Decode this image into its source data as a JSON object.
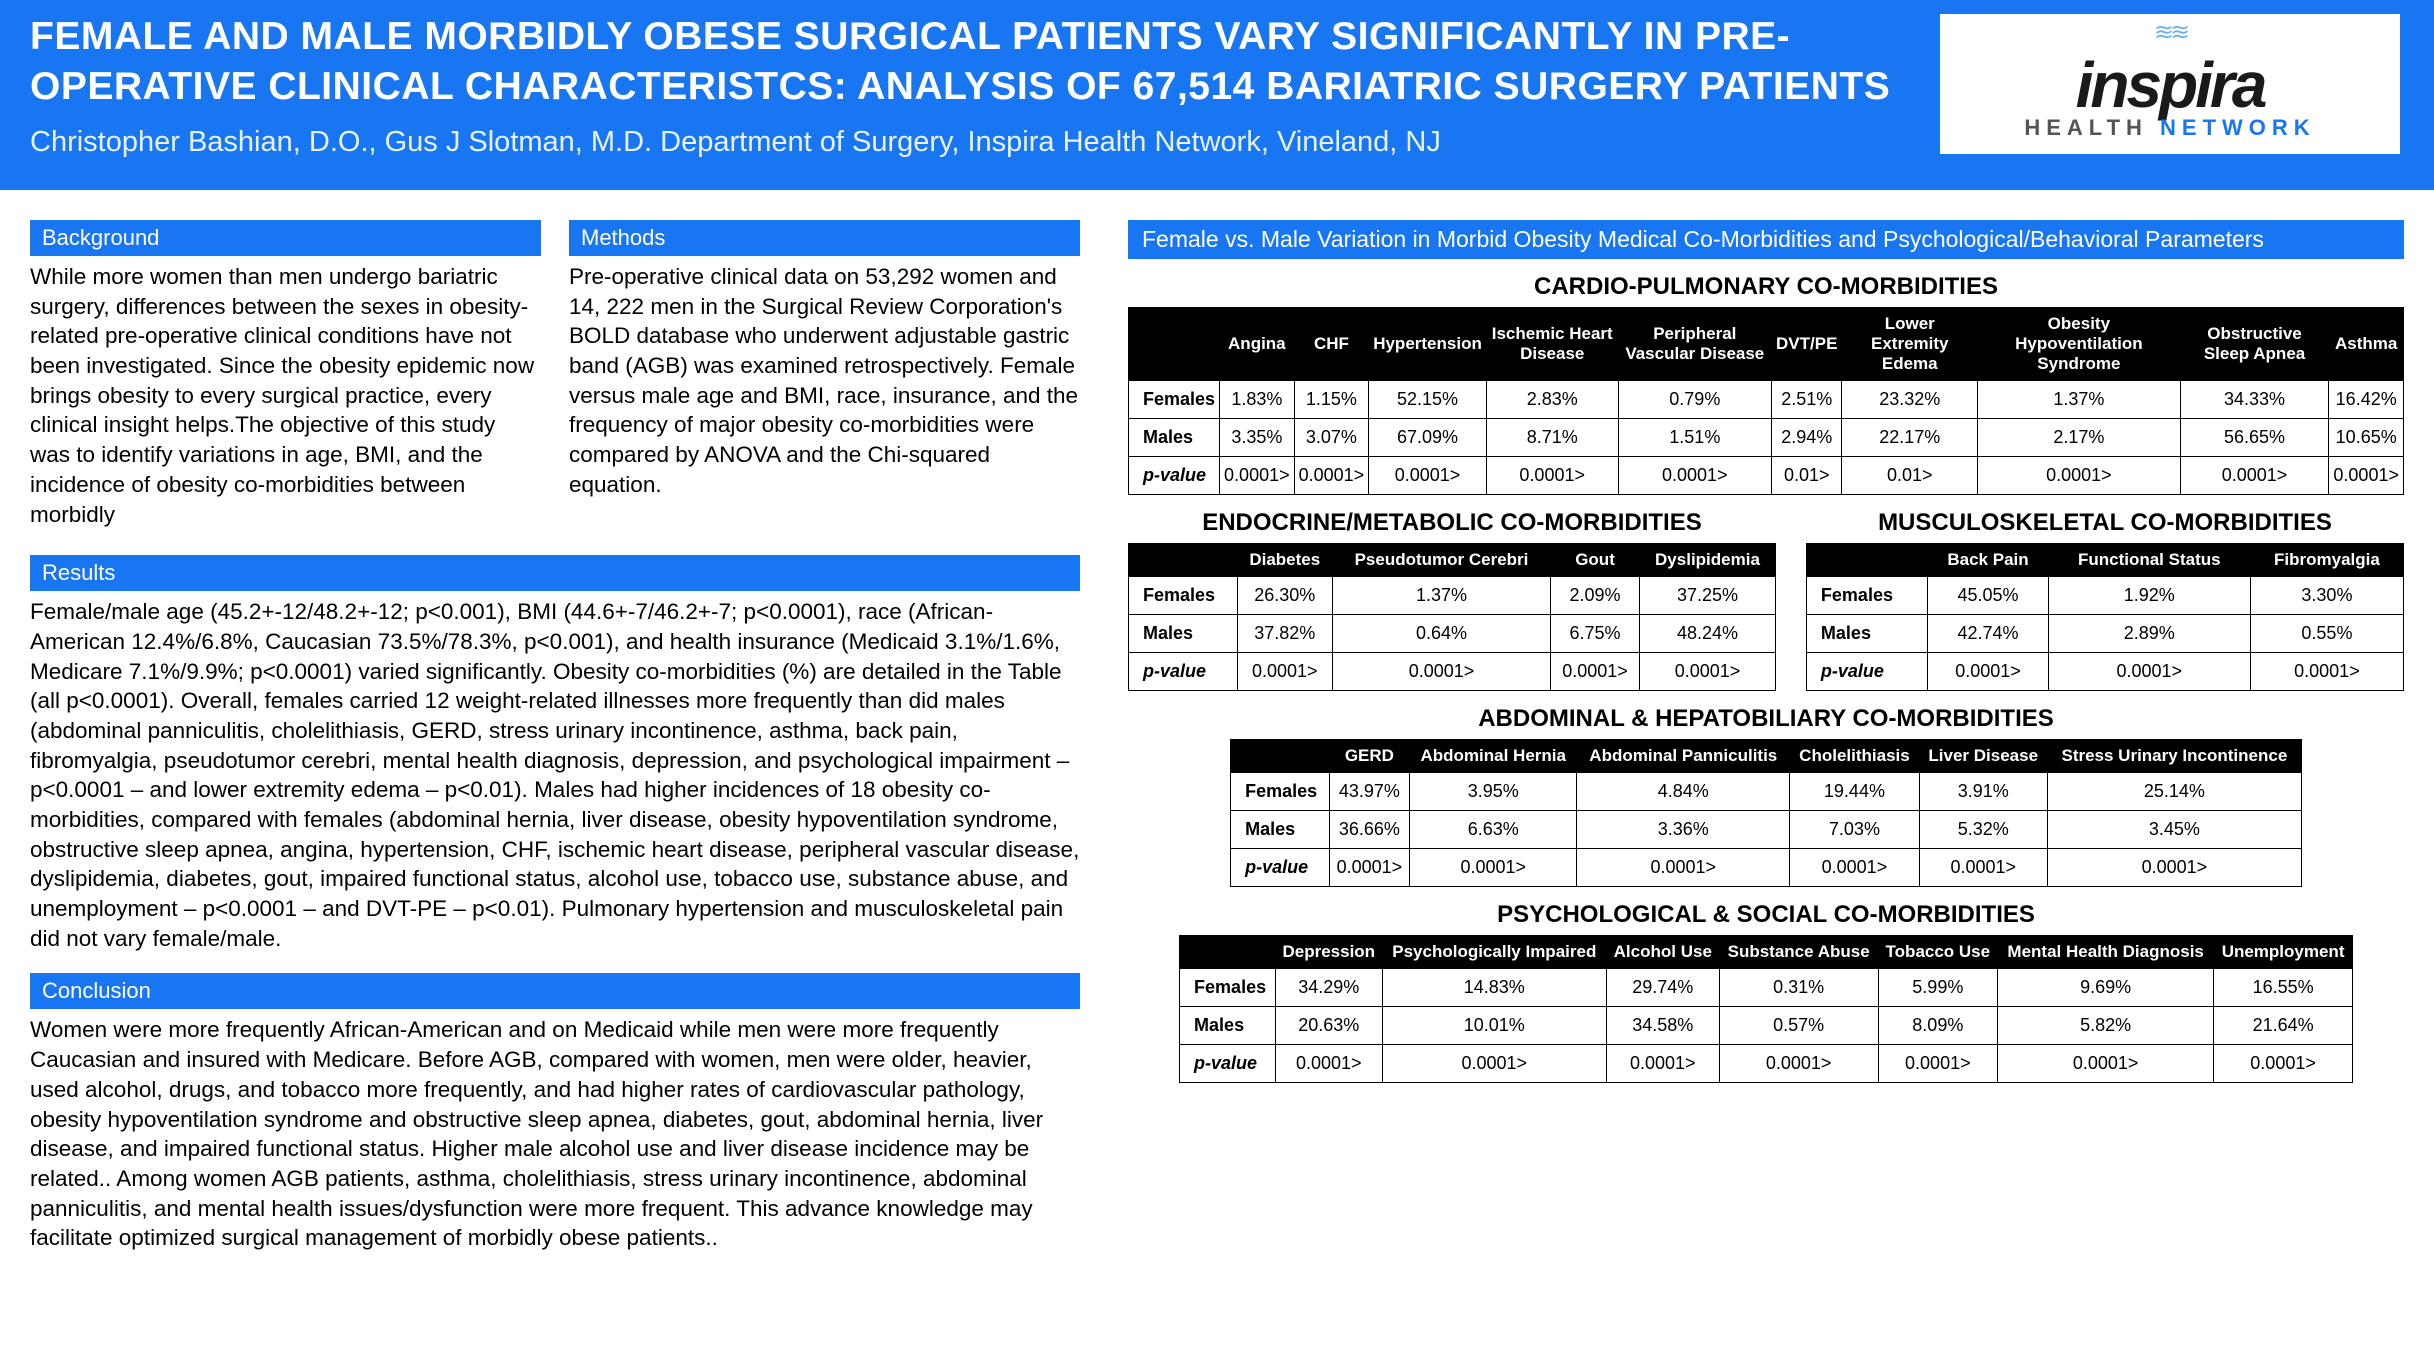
{
  "header": {
    "title": "FEMALE AND MALE MORBIDLY OBESE SURGICAL PATIENTS VARY SIGNIFICANTLY IN PRE-OPERATIVE CLINICAL CHARACTERISTCS: ANALYSIS OF 67,514 BARIATRIC SURGERY PATIENTS",
    "authors": "Christopher Bashian, D.O., Gus J Slotman, M.D.  Department of Surgery, Inspira Health Network, Vineland, NJ",
    "logo_main": "inspira",
    "logo_sub_left": "HEALTH",
    "logo_sub_right": "NETWORK"
  },
  "colors": {
    "primary": "#1976f2",
    "black": "#000000",
    "white": "#ffffff"
  },
  "sections": {
    "background": {
      "title": "Background",
      "text": "While more women than men undergo bariatric surgery, differences between the sexes in obesity-related pre-operative clinical conditions have not been investigated.   Since the obesity epidemic now brings obesity to every surgical practice, every clinical insight helps.The objective of this study was to identify variations in age, BMI, and the incidence of obesity co-morbidities between morbidly"
    },
    "methods": {
      "title": "Methods",
      "text": "Pre-operative clinical data on 53,292 women and 14, 222 men in the Surgical Review Corporation's BOLD database who underwent adjustable gastric band (AGB) was examined retrospectively. Female versus male age and BMI, race, insurance, and the frequency of major obesity co-morbidities were compared by ANOVA and the Chi-squared equation."
    },
    "results": {
      "title": "Results",
      "text": "Female/male age (45.2+-12/48.2+-12; p<0.001), BMI (44.6+-7/46.2+-7; p<0.0001), race (African-American 12.4%/6.8%, Caucasian 73.5%/78.3%, p<0.001), and health insurance (Medicaid 3.1%/1.6%, Medicare 7.1%/9.9%; p<0.0001) varied significantly. Obesity co-morbidities (%) are detailed in the Table (all p<0.0001).  Overall, females carried 12 weight-related illnesses more frequently than did males (abdominal panniculitis, cholelithiasis, GERD, stress urinary incontinence, asthma, back pain, fibromyalgia, pseudotumor cerebri, mental health diagnosis, depression, and psychological impairment – p<0.0001 – and lower extremity edema – p<0.01).  Males had higher incidences of 18 obesity co-morbidities, compared with females (abdominal hernia, liver disease, obesity hypoventilation syndrome, obstructive sleep apnea, angina, hypertension, CHF, ischemic heart disease, peripheral vascular disease, dyslipidemia, diabetes, gout, impaired functional status, alcohol use, tobacco use, substance abuse, and unemployment – p<0.0001 – and DVT-PE – p<0.01).  Pulmonary hypertension and musculoskeletal pain did not vary female/male."
    },
    "conclusion": {
      "title": "Conclusion",
      "text": "Women were more frequently African-American and on Medicaid while men were more frequently Caucasian and insured with Medicare.  Before AGB, compared with women, men were older, heavier, used alcohol, drugs, and tobacco more frequently, and had higher rates of cardiovascular pathology, obesity hypoventilation syndrome and obstructive sleep apnea, diabetes, gout, abdominal hernia, liver disease, and impaired functional status.  Higher  male alcohol use and liver disease incidence may be related..  Among women AGB patients, asthma, cholelithiasis, stress urinary incontinence, abdominal panniculitis, and mental health issues/dysfunction were more frequent.  This advance knowledge may facilitate optimized surgical management of morbidly obese patients.."
    }
  },
  "tables_header": "Female vs. Male Variation in Morbid Obesity Medical Co-Morbidities and Psychological/Behavioral Parameters",
  "table1": {
    "title": "CARDIO-PULMONARY CO-MORBIDITIES",
    "columns": [
      "Angina",
      "CHF",
      "Hypertension",
      "Ischemic Heart Disease",
      "Peripheral Vascular Disease",
      "DVT/PE",
      "Lower Extremity Edema",
      "Obesity Hypoventilation Syndrome",
      "Obstructive Sleep Apnea",
      "Asthma"
    ],
    "rows": [
      {
        "label": "Females",
        "cells": [
          "1.83%",
          "1.15%",
          "52.15%",
          "2.83%",
          "0.79%",
          "2.51%",
          "23.32%",
          "1.37%",
          "34.33%"
        ],
        "asthma": "16.42%"
      },
      {
        "label": "Males",
        "cells": [
          "3.35%",
          "3.07%",
          "67.09%",
          "8.71%",
          "1.51%",
          "2.94%",
          "22.17%",
          "2.17%",
          "56.65%"
        ],
        "asthma": "10.65%"
      },
      {
        "label": "p-value",
        "pval": true,
        "cells": [
          "0.0001>",
          "0.0001>",
          "0.0001>",
          "0.0001>",
          "0.0001>",
          "0.01>",
          "0.01>",
          "0.0001>",
          "0.0001>"
        ],
        "asthma": "0.0001>"
      }
    ]
  },
  "table2": {
    "title": "ENDOCRINE/METABOLIC CO-MORBIDITIES",
    "columns": [
      "Diabetes",
      "Pseudotumor Cerebri",
      "Gout",
      "Dyslipidemia"
    ],
    "rows": [
      {
        "label": "Females",
        "cells": [
          "26.30%",
          "1.37%",
          "2.09%",
          "37.25%"
        ]
      },
      {
        "label": "Males",
        "cells": [
          "37.82%",
          "0.64%",
          "6.75%",
          "48.24%"
        ]
      },
      {
        "label": "p-value",
        "pval": true,
        "cells": [
          "0.0001>",
          "0.0001>",
          "0.0001>",
          "0.0001>"
        ]
      }
    ]
  },
  "table3": {
    "title": "MUSCULOSKELETAL CO-MORBIDITIES",
    "columns": [
      "Back Pain",
      "Functional Status",
      "Fibromyalgia"
    ],
    "rows": [
      {
        "label": "Females",
        "cells": [
          "45.05%",
          "1.92%",
          "3.30%"
        ]
      },
      {
        "label": "Males",
        "cells": [
          "42.74%",
          "2.89%",
          "0.55%"
        ]
      },
      {
        "label": "p-value",
        "pval": true,
        "cells": [
          "0.0001>",
          "0.0001>",
          "0.0001>"
        ]
      }
    ]
  },
  "table4": {
    "title": "ABDOMINAL & HEPATOBILIARY CO-MORBIDITIES",
    "columns": [
      "GERD",
      "Abdominal Hernia",
      "Abdominal Panniculitis",
      "Cholelithiasis",
      "Liver Disease",
      "Stress Urinary Incontinence"
    ],
    "rows": [
      {
        "label": "Females",
        "cells": [
          "43.97%",
          "3.95%",
          "4.84%",
          "19.44%",
          "3.91%",
          "25.14%"
        ]
      },
      {
        "label": "Males",
        "cells": [
          "36.66%",
          "6.63%",
          "3.36%",
          "7.03%",
          "5.32%",
          "3.45%"
        ]
      },
      {
        "label": "p-value",
        "pval": true,
        "cells": [
          "0.0001>",
          "0.0001>",
          "0.0001>",
          "0.0001>",
          "0.0001>",
          "0.0001>"
        ]
      }
    ]
  },
  "table5": {
    "title": "PSYCHOLOGICAL & SOCIAL CO-MORBIDITIES",
    "columns": [
      "Depression",
      "Psychologically Impaired",
      "Alcohol Use",
      "Substance Abuse",
      "Tobacco Use",
      "Mental Health Diagnosis",
      "Unemployment"
    ],
    "rows": [
      {
        "label": "Females",
        "cells": [
          "34.29%",
          "14.83%",
          "29.74%",
          "0.31%",
          "5.99%",
          "9.69%",
          "16.55%"
        ]
      },
      {
        "label": "Males",
        "cells": [
          "20.63%",
          "10.01%",
          "34.58%",
          "0.57%",
          "8.09%",
          "5.82%",
          "21.64%"
        ]
      },
      {
        "label": "p-value",
        "pval": true,
        "cells": [
          "0.0001>",
          "0.0001>",
          "0.0001>",
          "0.0001>",
          "0.0001>",
          "0.0001>",
          "0.0001>"
        ]
      }
    ]
  }
}
